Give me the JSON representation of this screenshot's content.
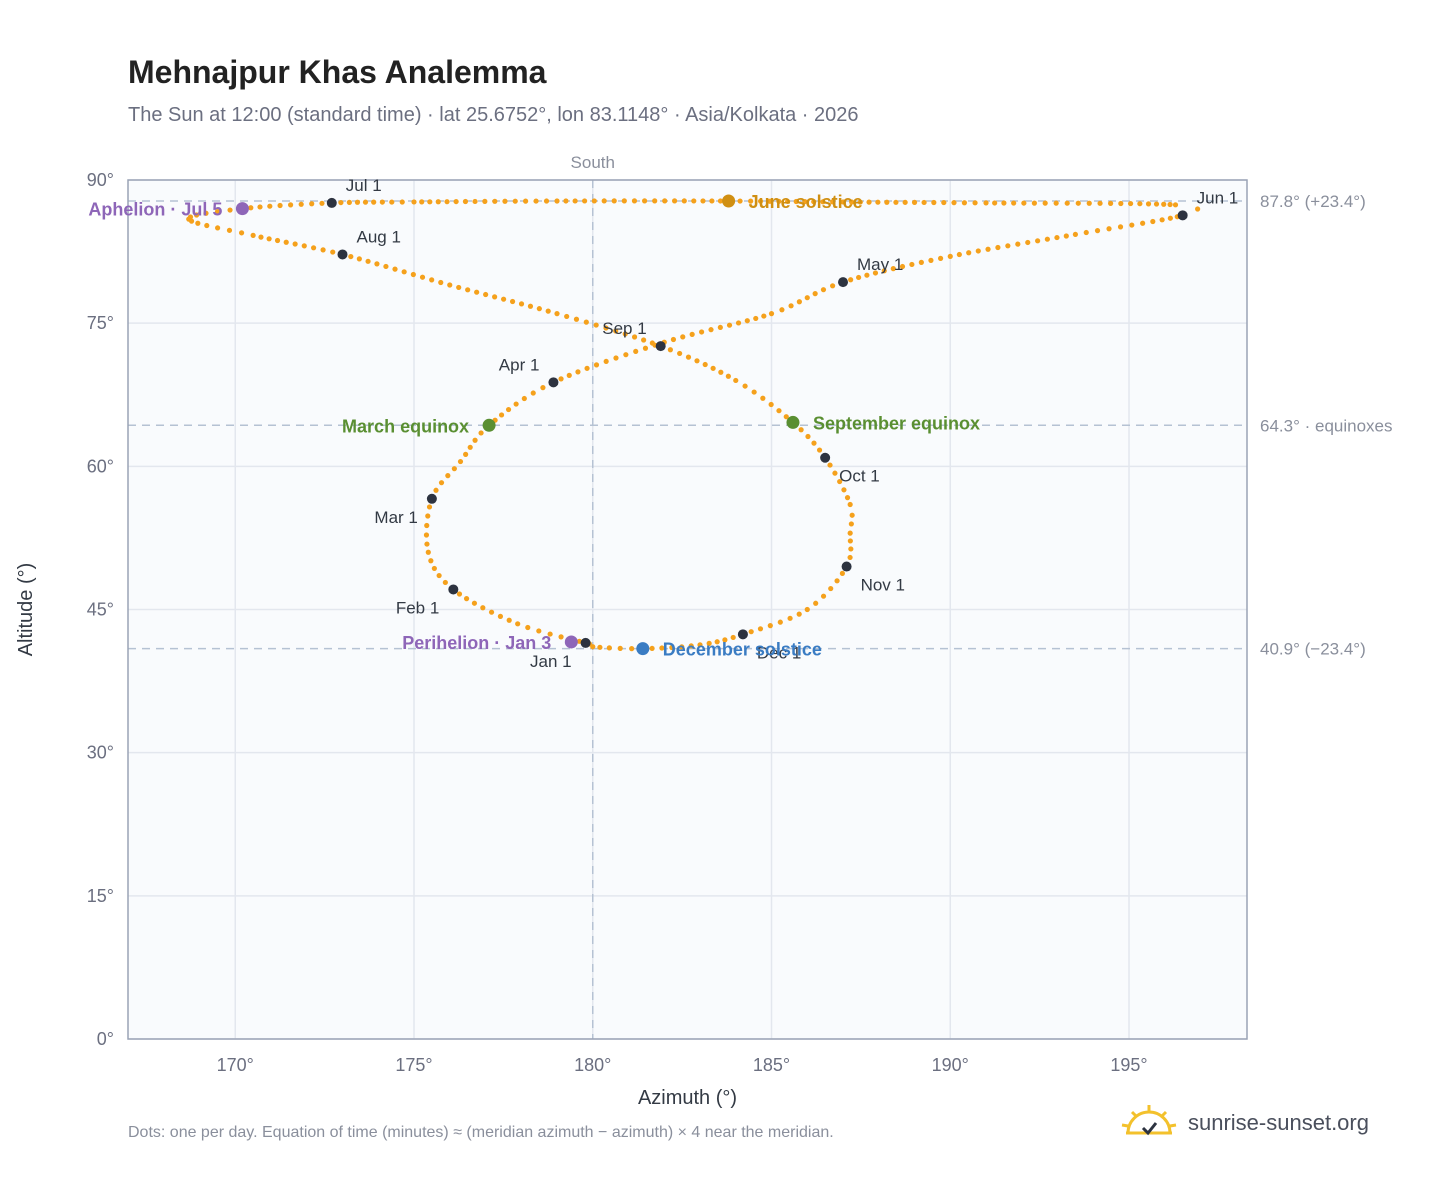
{
  "title": "Mehnajpur Khas Analemma",
  "subtitle": "The Sun at 12:00 (standard time) · lat 25.6752°, lon 83.1148° · Asia/Kolkata · 2026",
  "footnote": "Dots: one per day. Equation of time (minutes) ≈ (meridian azimuth − azimuth) × 4 near the meridian.",
  "brand": {
    "name": "sunrise-sunset.org",
    "icon": "sun-logo-icon"
  },
  "colors": {
    "path": "#f5a11c",
    "month_dot": "#2d3340",
    "perihelion": "#8e66b8",
    "equinox": "#5a8f32",
    "june_solstice": "#d08f12",
    "december_solstice": "#3a7cc3",
    "grid": "#e3e7ee",
    "plot_bg": "#f9fbfd",
    "frame": "#9aa3b5",
    "reference_line": "#b5c2d3"
  },
  "chart_data": {
    "type": "scatter",
    "title": "Mehnajpur Khas Analemma",
    "xlabel": "Azimuth (°)",
    "ylabel": "Altitude (°)",
    "xlim": [
      167,
      198.3
    ],
    "ylim": [
      0,
      90
    ],
    "x_ticks": [
      170,
      175,
      180,
      185,
      190,
      195
    ],
    "x_tick_labels": [
      "170°",
      "175°",
      "180°",
      "185°",
      "190°",
      "195°"
    ],
    "y_ticks": [
      0,
      15,
      30,
      45,
      60,
      75,
      90
    ],
    "y_tick_labels": [
      "0°",
      "15°",
      "30°",
      "45°",
      "60°",
      "75°",
      "90°"
    ],
    "grid": true,
    "vertical_reference": {
      "x": 180,
      "label": "South"
    },
    "horizontal_references": [
      {
        "y": 87.8,
        "label": "87.8° (+23.4°)"
      },
      {
        "y": 64.3,
        "label": "64.3° · equinoxes"
      },
      {
        "y": 40.9,
        "label": "40.9° (−23.4°)"
      }
    ],
    "month_markers": [
      {
        "label": "Jan 1",
        "azimuth": 179.8,
        "altitude": 41.5
      },
      {
        "label": "Feb 1",
        "azimuth": 176.1,
        "altitude": 47.1
      },
      {
        "label": "Mar 1",
        "azimuth": 175.5,
        "altitude": 56.6
      },
      {
        "label": "Apr 1",
        "azimuth": 178.9,
        "altitude": 68.8
      },
      {
        "label": "May 1",
        "azimuth": 187.0,
        "altitude": 79.3
      },
      {
        "label": "Jun 1",
        "azimuth": 196.5,
        "altitude": 86.3
      },
      {
        "label": "Jul 1",
        "azimuth": 172.7,
        "altitude": 87.6
      },
      {
        "label": "Aug 1",
        "azimuth": 173.0,
        "altitude": 82.2
      },
      {
        "label": "Sep 1",
        "azimuth": 181.9,
        "altitude": 72.6
      },
      {
        "label": "Oct 1",
        "azimuth": 186.5,
        "altitude": 60.9
      },
      {
        "label": "Nov 1",
        "azimuth": 187.1,
        "altitude": 49.5
      },
      {
        "label": "Dec 1",
        "azimuth": 184.2,
        "altitude": 42.4
      }
    ],
    "events": [
      {
        "label": "Perihelion · Jan 3",
        "azimuth": 179.4,
        "altitude": 41.6,
        "color_key": "perihelion"
      },
      {
        "label": "March equinox",
        "azimuth": 177.1,
        "altitude": 64.3,
        "color_key": "equinox"
      },
      {
        "label": "June solstice",
        "azimuth": 183.8,
        "altitude": 87.8,
        "color_key": "june_solstice"
      },
      {
        "label": "Aphelion · Jul 5",
        "azimuth": 170.2,
        "altitude": 87.0,
        "color_key": "perihelion"
      },
      {
        "label": "September equinox",
        "azimuth": 185.6,
        "altitude": 64.6,
        "color_key": "equinox"
      },
      {
        "label": "December solstice",
        "azimuth": 181.4,
        "altitude": 40.9,
        "color_key": "december_solstice"
      }
    ],
    "series": [
      {
        "azimuth": [
          179.8,
          177.9,
          176.1,
          175.4,
          175.5,
          176.3,
          177.1,
          178.9,
          182.0,
          185.0,
          187.0,
          190.0,
          193.5,
          196.5,
          196.3,
          191.0,
          187.0,
          183.8,
          179.0,
          175.0,
          172.7,
          170.2,
          168.7,
          170.5,
          173.0,
          176.0,
          179.0,
          181.9,
          184.0,
          185.6,
          186.5,
          187.2,
          187.2,
          187.1,
          186.0,
          184.2,
          183.0,
          181.4,
          180.0,
          179.8
        ],
        "altitude": [
          41.5,
          43.5,
          47.1,
          51.0,
          56.6,
          60.5,
          64.3,
          68.8,
          73.0,
          76.0,
          79.3,
          82.0,
          84.3,
          86.3,
          87.4,
          87.6,
          87.7,
          87.8,
          87.8,
          87.7,
          87.6,
          87.0,
          85.9,
          84.2,
          82.2,
          79.0,
          76.0,
          72.6,
          69.0,
          64.6,
          60.9,
          56.0,
          53.0,
          49.5,
          45.0,
          42.4,
          41.3,
          40.9,
          41.1,
          41.5
        ]
      }
    ]
  }
}
